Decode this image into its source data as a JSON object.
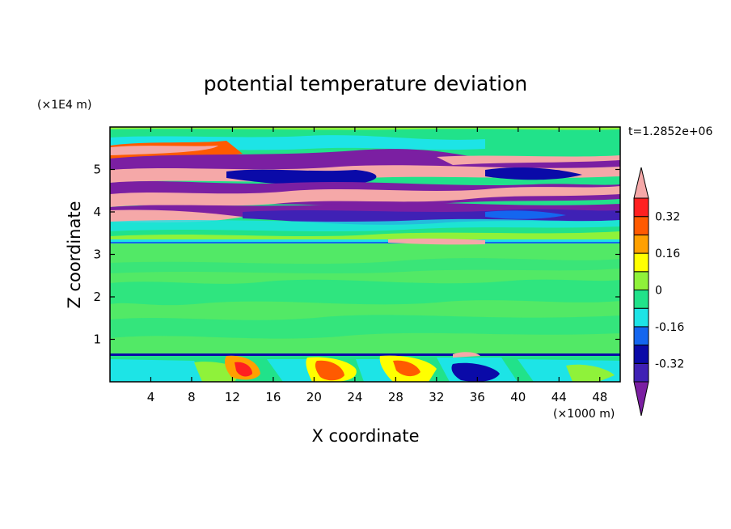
{
  "chart_data": {
    "type": "heatmap",
    "title": "potential temperature deviation",
    "xlabel": "X coordinate",
    "ylabel": "Z coordinate",
    "x_unit": "(×1000 m)",
    "y_unit": "(×1E4 m)",
    "time_label": "t=1.2852e+06",
    "xlim": [
      0,
      50
    ],
    "ylim": [
      0,
      6
    ],
    "x_ticks": [
      4,
      8,
      12,
      16,
      20,
      24,
      28,
      32,
      36,
      40,
      44,
      48
    ],
    "x_tick_labels": [
      "4",
      "8",
      "12",
      "16",
      "20",
      "24",
      "28",
      "32",
      "36",
      "40",
      "44",
      "48"
    ],
    "y_ticks": [
      1,
      2,
      3,
      4,
      5
    ],
    "y_tick_labels": [
      "1",
      "2",
      "3",
      "4",
      "5"
    ],
    "colorbar": {
      "levels": [
        -0.4,
        -0.32,
        -0.24,
        -0.16,
        -0.08,
        0,
        0.08,
        0.16,
        0.24,
        0.32,
        0.4
      ],
      "labeled_levels": [
        0.32,
        0.16,
        0,
        -0.16,
        -0.32
      ],
      "labels": [
        "0.32",
        "0.16",
        "0",
        "-0.16",
        "-0.32"
      ],
      "colors_low_to_high": [
        "#7b1fa2",
        "#3f21b5",
        "#0a0aa8",
        "#1466ef",
        "#1de4e6",
        "#21e28a",
        "#8ff23a",
        "#ffff00",
        "#ffa000",
        "#ff5a00",
        "#ff2020",
        "#f5a8a8"
      ],
      "extend": "both"
    }
  }
}
